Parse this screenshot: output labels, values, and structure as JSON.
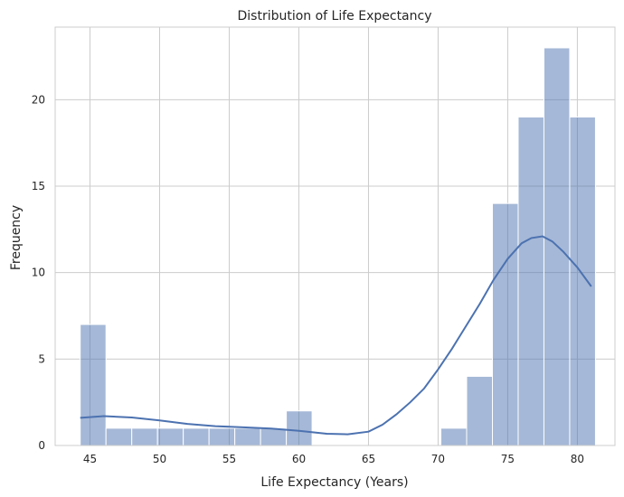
{
  "chart_data": {
    "type": "bar",
    "subtype": "histogram",
    "title": "Distribution of Life Expectancy",
    "xlabel": "Life Expectancy (Years)",
    "ylabel": "Frequency",
    "xlim": [
      42.5,
      82.7
    ],
    "ylim": [
      0,
      24.2
    ],
    "xticks": [
      45,
      50,
      55,
      60,
      65,
      70,
      75,
      80
    ],
    "yticks": [
      0,
      5,
      10,
      15,
      20
    ],
    "grid": true,
    "bar_color": "#4c72b0",
    "bins": [
      {
        "x0": 44.3,
        "x1": 46.15,
        "count": 7
      },
      {
        "x0": 46.15,
        "x1": 48.0,
        "count": 1
      },
      {
        "x0": 48.0,
        "x1": 49.85,
        "count": 1
      },
      {
        "x0": 49.85,
        "x1": 51.7,
        "count": 1
      },
      {
        "x0": 51.7,
        "x1": 53.55,
        "count": 1
      },
      {
        "x0": 53.55,
        "x1": 55.4,
        "count": 1
      },
      {
        "x0": 55.4,
        "x1": 57.25,
        "count": 1
      },
      {
        "x0": 57.25,
        "x1": 59.1,
        "count": 1
      },
      {
        "x0": 59.1,
        "x1": 60.95,
        "count": 2
      },
      {
        "x0": 60.95,
        "x1": 62.8,
        "count": 0
      },
      {
        "x0": 62.8,
        "x1": 64.65,
        "count": 0
      },
      {
        "x0": 64.65,
        "x1": 66.5,
        "count": 0
      },
      {
        "x0": 66.5,
        "x1": 68.35,
        "count": 0
      },
      {
        "x0": 68.35,
        "x1": 70.2,
        "count": 0
      },
      {
        "x0": 70.2,
        "x1": 72.05,
        "count": 1
      },
      {
        "x0": 72.05,
        "x1": 73.9,
        "count": 4
      },
      {
        "x0": 73.9,
        "x1": 75.75,
        "count": 14
      },
      {
        "x0": 75.75,
        "x1": 77.6,
        "count": 19
      },
      {
        "x0": 77.6,
        "x1": 79.45,
        "count": 23
      },
      {
        "x0": 79.45,
        "x1": 81.3,
        "count": 19
      }
    ],
    "kde": {
      "x": [
        44.3,
        46,
        48,
        50,
        52,
        54,
        56,
        58,
        60,
        62,
        63.5,
        65,
        66,
        67,
        68,
        69,
        70,
        71,
        72,
        73,
        74,
        75,
        76,
        76.7,
        77.5,
        78.2,
        79,
        80,
        81
      ],
      "y": [
        1.6,
        1.7,
        1.62,
        1.45,
        1.25,
        1.12,
        1.05,
        0.98,
        0.85,
        0.68,
        0.65,
        0.8,
        1.2,
        1.8,
        2.5,
        3.3,
        4.4,
        5.6,
        6.9,
        8.2,
        9.6,
        10.8,
        11.7,
        12.0,
        12.1,
        11.8,
        11.2,
        10.3,
        9.2
      ]
    }
  }
}
